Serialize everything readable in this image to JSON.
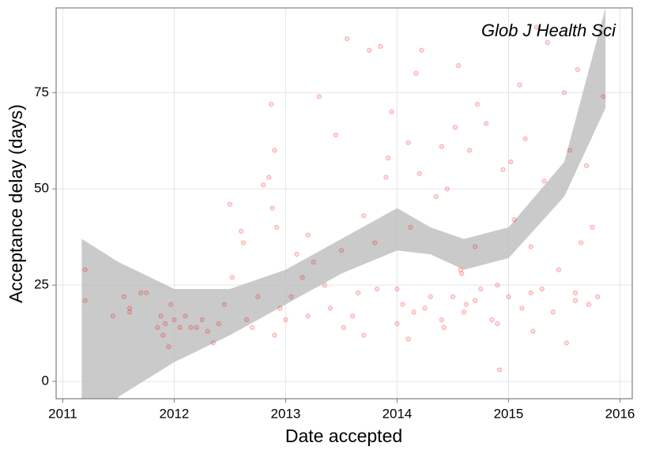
{
  "chart_data": {
    "type": "scatter",
    "xlabel": "Date accepted",
    "ylabel": "Acceptance delay (days)",
    "annotation": "Glob J Health Sci",
    "xlim": [
      2010.94,
      2016.11
    ],
    "ylim": [
      -4.5,
      97
    ],
    "xticks": [
      2011,
      2012,
      2013,
      2014,
      2015,
      2016
    ],
    "yticks": [
      0,
      25,
      50,
      75
    ],
    "grid": true,
    "color": "#ff0000",
    "band_color": "#bdbdbd",
    "points": {
      "x": [
        2011.2,
        2011.2,
        2011.45,
        2011.55,
        2011.6,
        2011.6,
        2011.7,
        2011.75,
        2011.85,
        2011.88,
        2011.9,
        2011.92,
        2011.95,
        2011.97,
        2012.0,
        2012.05,
        2012.1,
        2012.15,
        2012.2,
        2012.25,
        2012.3,
        2012.35,
        2012.4,
        2012.45,
        2012.5,
        2012.52,
        2012.6,
        2012.62,
        2012.65,
        2012.7,
        2012.75,
        2012.8,
        2012.85,
        2012.87,
        2012.88,
        2012.9,
        2012.92,
        2012.95,
        2013.0,
        2013.05,
        2013.1,
        2013.15,
        2013.2,
        2013.25,
        2013.3,
        2013.35,
        2013.4,
        2013.45,
        2013.5,
        2013.52,
        2013.55,
        2013.6,
        2013.65,
        2013.7,
        2013.75,
        2013.8,
        2013.82,
        2013.85,
        2013.9,
        2013.92,
        2013.95,
        2014.0,
        2014.0,
        2014.05,
        2014.1,
        2014.12,
        2014.15,
        2014.17,
        2014.2,
        2014.22,
        2014.25,
        2014.3,
        2014.35,
        2014.4,
        2014.42,
        2014.45,
        2014.5,
        2014.52,
        2014.55,
        2014.57,
        2014.58,
        2014.6,
        2014.62,
        2014.65,
        2014.7,
        2014.72,
        2014.75,
        2014.8,
        2014.85,
        2014.9,
        2014.92,
        2014.95,
        2015.0,
        2015.02,
        2015.05,
        2015.1,
        2015.12,
        2015.15,
        2015.2,
        2015.22,
        2015.25,
        2015.3,
        2015.32,
        2015.35,
        2015.4,
        2015.45,
        2015.5,
        2015.52,
        2015.55,
        2015.6,
        2015.62,
        2015.65,
        2015.7,
        2015.72,
        2015.75,
        2015.8,
        2015.85,
        2015.2,
        2014.4,
        2014.7,
        2013.7,
        2013.2,
        2014.9,
        2015.6,
        2012.9,
        2014.1
      ],
      "y": [
        21,
        29,
        17,
        22,
        19,
        18,
        23,
        23,
        14,
        17,
        12,
        15,
        9,
        20,
        16,
        14,
        17,
        14,
        14,
        16,
        13,
        10,
        15,
        20,
        46,
        27,
        39,
        36,
        16,
        14,
        22,
        51,
        53,
        72,
        45,
        60,
        40,
        19,
        16,
        22,
        33,
        27,
        38,
        31,
        74,
        25,
        19,
        64,
        34,
        14,
        89,
        17,
        23,
        43,
        86,
        36,
        24,
        87,
        53,
        58,
        70,
        15,
        24,
        20,
        62,
        40,
        18,
        80,
        54,
        86,
        19,
        22,
        48,
        61,
        14,
        50,
        22,
        66,
        82,
        29,
        28,
        18,
        20,
        60,
        35,
        72,
        24,
        67,
        16,
        15,
        3,
        55,
        22,
        57,
        42,
        77,
        19,
        63,
        35,
        13,
        92,
        24,
        52,
        88,
        18,
        29,
        75,
        10,
        60,
        23,
        81,
        36,
        56,
        20,
        40,
        22,
        74,
        23,
        16,
        21,
        12,
        17,
        25,
        21,
        12,
        11
      ]
    },
    "band": {
      "x": [
        2011.17,
        2011.5,
        2012.0,
        2012.5,
        2013.0,
        2013.5,
        2014.0,
        2014.3,
        2014.6,
        2015.0,
        2015.5,
        2015.87
      ],
      "lower": [
        -20,
        -4,
        5,
        12,
        20,
        28,
        34,
        33,
        29,
        32,
        48,
        71
      ],
      "upper": [
        37,
        31,
        24,
        24,
        29,
        37,
        45,
        40,
        37,
        40,
        57,
        97
      ]
    }
  }
}
